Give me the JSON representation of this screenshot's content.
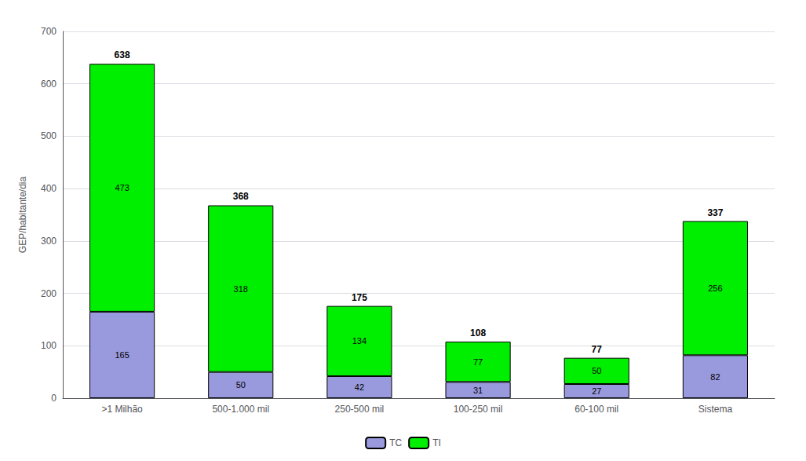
{
  "chart_data": {
    "type": "bar",
    "stacked": true,
    "categories": [
      ">1 Milhão",
      "500-1.000 mil",
      "250-500 mil",
      "100-250 mil",
      "60-100 mil",
      "Sistema"
    ],
    "series": [
      {
        "name": "TC",
        "color": "#9999dd",
        "values": [
          165,
          50,
          42,
          31,
          27,
          82
        ]
      },
      {
        "name": "TI",
        "color": "#00ee00",
        "values": [
          473,
          318,
          134,
          77,
          50,
          256
        ]
      }
    ],
    "totals": [
      638,
      368,
      175,
      108,
      77,
      337
    ],
    "ylabel": "GEP/habitante/dia",
    "ylim": [
      0,
      700
    ],
    "yticks": [
      0,
      100,
      200,
      300,
      400,
      500,
      600,
      700
    ],
    "grid": true,
    "legend": "bottom",
    "data_labels": true
  }
}
